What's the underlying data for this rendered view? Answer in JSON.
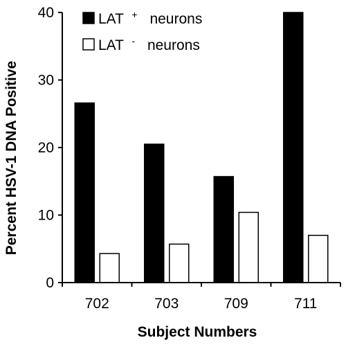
{
  "chart_data": {
    "type": "bar",
    "categories": [
      "702",
      "703",
      "709",
      "711"
    ],
    "series": [
      {
        "name": "LAT",
        "name_sup": "+",
        "name_suffix": "neurons",
        "color": "#000000",
        "fill": "solid",
        "values": [
          26.6,
          20.5,
          15.7,
          40
        ]
      },
      {
        "name": "LAT",
        "name_sup": "-",
        "name_suffix": "neurons",
        "color": "#ffffff",
        "fill": "hollow",
        "values": [
          4.3,
          5.7,
          10.4,
          7.0
        ]
      }
    ],
    "yticks": [
      "0",
      "10",
      "20",
      "30",
      "40"
    ],
    "ylim": [
      0,
      40
    ],
    "xlabel": "Subject Numbers",
    "ylabel": "Percent HSV-1 DNA Positive",
    "legend_position": "top-left"
  }
}
